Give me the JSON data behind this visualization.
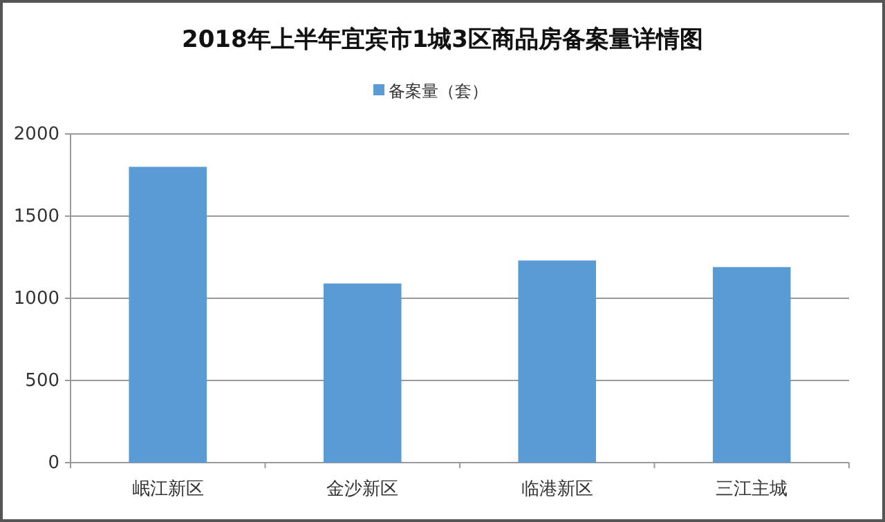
{
  "chart_data": {
    "type": "bar",
    "title": "2018年上半年宜宾市1城3区商品房备案量详情图",
    "categories": [
      "岷江新区",
      "金沙新区",
      "临港新区",
      "三江主城"
    ],
    "series": [
      {
        "name": "备案量（套）",
        "color": "#5b9bd5",
        "values": [
          1800,
          1090,
          1230,
          1190
        ]
      }
    ],
    "ylim": [
      0,
      2000
    ],
    "yticks": [
      0,
      500,
      1000,
      1500,
      2000
    ],
    "grid": "y",
    "legend": "top"
  }
}
